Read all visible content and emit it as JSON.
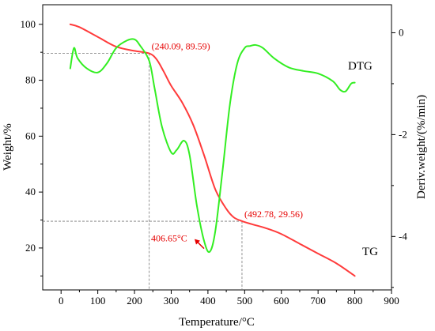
{
  "chart_data": {
    "type": "line",
    "xlabel": "Temperature/°C",
    "ylabel_left": "Weight/%",
    "ylabel_right": "Deriv.weight/(%/min)",
    "xlim": [
      -50,
      900
    ],
    "ylim_left": [
      5,
      107
    ],
    "ylim_right": [
      -5.05,
      0.55
    ],
    "xticks": [
      0,
      100,
      200,
      300,
      400,
      500,
      600,
      700,
      800,
      900
    ],
    "yticks_left": [
      20,
      40,
      60,
      80,
      100
    ],
    "yticks_right": [
      -4,
      -2,
      0
    ],
    "grid": false,
    "colors": {
      "TG": "#ff3b3b",
      "DTG": "#33ee22",
      "guide": "#777777",
      "annotation": "#e60000"
    },
    "series": [
      {
        "name": "TG",
        "axis": "left",
        "x": [
          25,
          50,
          100,
          150,
          200,
          240,
          260,
          280,
          300,
          330,
          360,
          390,
          420,
          450,
          470,
          493,
          520,
          560,
          600,
          650,
          700,
          750,
          800
        ],
        "y": [
          100,
          99,
          95.5,
          92,
          90.5,
          89.6,
          87.5,
          83,
          78,
          72,
          64,
          53,
          41,
          34,
          31,
          29.6,
          28.5,
          27,
          25,
          21.5,
          18,
          14.5,
          10
        ]
      },
      {
        "name": "DTG",
        "axis": "right",
        "x": [
          25,
          35,
          45,
          70,
          100,
          125,
          150,
          180,
          200,
          215,
          240,
          255,
          275,
          300,
          315,
          335,
          350,
          370,
          390,
          405,
          420,
          440,
          460,
          480,
          500,
          515,
          530,
          550,
          580,
          620,
          660,
          700,
          740,
          760,
          775,
          790,
          800
        ],
        "y": [
          -0.7,
          -0.3,
          -0.5,
          -0.7,
          -0.78,
          -0.6,
          -0.3,
          -0.15,
          -0.13,
          -0.25,
          -0.55,
          -1.1,
          -1.85,
          -2.35,
          -2.3,
          -2.12,
          -2.4,
          -3.4,
          -4.1,
          -4.3,
          -3.9,
          -2.7,
          -1.4,
          -0.6,
          -0.3,
          -0.26,
          -0.24,
          -0.3,
          -0.5,
          -0.68,
          -0.75,
          -0.8,
          -0.95,
          -1.12,
          -1.15,
          -1.0,
          -0.98
        ]
      }
    ],
    "annotations": [
      {
        "label": "(240.09, 89.59)",
        "x": 240.09,
        "y": 89.59
      },
      {
        "label": "(492.78, 29.56)",
        "x": 492.78,
        "y": 29.56
      },
      {
        "label": "406.65°C",
        "x": 406.65,
        "y": -4.3,
        "axis": "right"
      }
    ],
    "series_labels": [
      "DTG",
      "TG"
    ]
  }
}
